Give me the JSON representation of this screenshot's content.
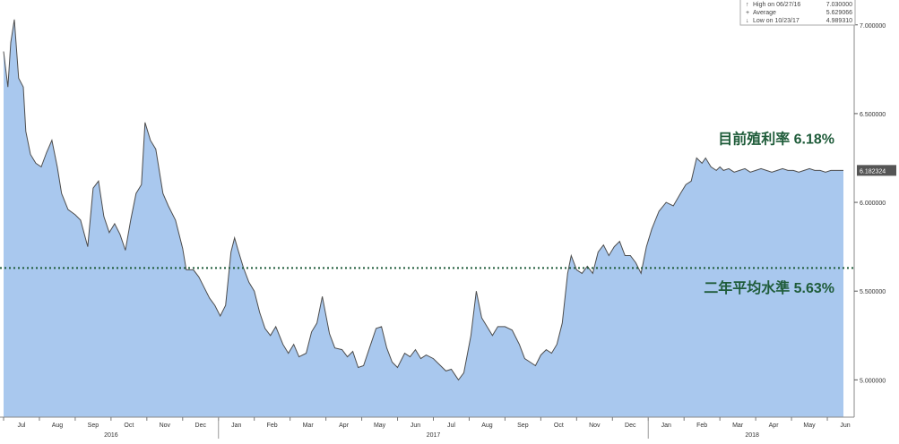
{
  "chart_data": {
    "type": "area",
    "x_axis": {
      "months": [
        {
          "label": "Jul",
          "t": 0.5
        },
        {
          "label": "Aug",
          "t": 1.5
        },
        {
          "label": "Sep",
          "t": 2.5
        },
        {
          "label": "Oct",
          "t": 3.5
        },
        {
          "label": "Nov",
          "t": 4.5
        },
        {
          "label": "Dec",
          "t": 5.5
        },
        {
          "label": "Jan",
          "t": 6.5
        },
        {
          "label": "Feb",
          "t": 7.5
        },
        {
          "label": "Mar",
          "t": 8.5
        },
        {
          "label": "Apr",
          "t": 9.5
        },
        {
          "label": "May",
          "t": 10.5
        },
        {
          "label": "Jun",
          "t": 11.5
        },
        {
          "label": "Jul",
          "t": 12.5
        },
        {
          "label": "Aug",
          "t": 13.5
        },
        {
          "label": "Sep",
          "t": 14.5
        },
        {
          "label": "Oct",
          "t": 15.5
        },
        {
          "label": "Nov",
          "t": 16.5
        },
        {
          "label": "Dec",
          "t": 17.5
        },
        {
          "label": "Jan",
          "t": 18.5
        },
        {
          "label": "Feb",
          "t": 19.5
        },
        {
          "label": "Mar",
          "t": 20.5
        },
        {
          "label": "Apr",
          "t": 21.5
        },
        {
          "label": "May",
          "t": 22.5
        },
        {
          "label": "Jun",
          "t": 23.5
        }
      ],
      "years": [
        {
          "label": "2016",
          "t": 3.0
        },
        {
          "label": "2017",
          "t": 12.0
        },
        {
          "label": "2018",
          "t": 20.9
        }
      ],
      "year_separators": [
        6.0,
        18.0
      ],
      "range": [
        -0.1,
        23.75
      ]
    },
    "y_axis": {
      "ticks": [
        "7.000000",
        "6.500000",
        "6.000000",
        "5.500000",
        "5.000000"
      ],
      "tick_values": [
        7.0,
        6.5,
        6.0,
        5.5,
        5.0
      ],
      "range": [
        4.79,
        7.14
      ]
    },
    "series": [
      {
        "points": [
          [
            0.0,
            6.85
          ],
          [
            0.12,
            6.65
          ],
          [
            0.2,
            6.9
          ],
          [
            0.3,
            7.03
          ],
          [
            0.42,
            6.7
          ],
          [
            0.55,
            6.65
          ],
          [
            0.62,
            6.4
          ],
          [
            0.75,
            6.27
          ],
          [
            0.9,
            6.22
          ],
          [
            1.05,
            6.2
          ],
          [
            1.2,
            6.28
          ],
          [
            1.35,
            6.35
          ],
          [
            1.5,
            6.2
          ],
          [
            1.62,
            6.05
          ],
          [
            1.8,
            5.96
          ],
          [
            2.0,
            5.93
          ],
          [
            2.15,
            5.9
          ],
          [
            2.35,
            5.75
          ],
          [
            2.5,
            6.08
          ],
          [
            2.65,
            6.12
          ],
          [
            2.8,
            5.92
          ],
          [
            2.95,
            5.83
          ],
          [
            3.1,
            5.88
          ],
          [
            3.25,
            5.82
          ],
          [
            3.4,
            5.73
          ],
          [
            3.55,
            5.9
          ],
          [
            3.7,
            6.05
          ],
          [
            3.85,
            6.1
          ],
          [
            3.95,
            6.45
          ],
          [
            4.1,
            6.35
          ],
          [
            4.25,
            6.3
          ],
          [
            4.45,
            6.05
          ],
          [
            4.6,
            5.98
          ],
          [
            4.8,
            5.9
          ],
          [
            5.0,
            5.74
          ],
          [
            5.1,
            5.62
          ],
          [
            5.3,
            5.62
          ],
          [
            5.45,
            5.58
          ],
          [
            5.6,
            5.52
          ],
          [
            5.75,
            5.46
          ],
          [
            5.9,
            5.42
          ],
          [
            6.05,
            5.36
          ],
          [
            6.2,
            5.42
          ],
          [
            6.35,
            5.72
          ],
          [
            6.45,
            5.8
          ],
          [
            6.55,
            5.73
          ],
          [
            6.7,
            5.63
          ],
          [
            6.85,
            5.55
          ],
          [
            7.0,
            5.5
          ],
          [
            7.15,
            5.38
          ],
          [
            7.3,
            5.29
          ],
          [
            7.45,
            5.25
          ],
          [
            7.6,
            5.3
          ],
          [
            7.8,
            5.2
          ],
          [
            7.95,
            5.15
          ],
          [
            8.1,
            5.2
          ],
          [
            8.25,
            5.13
          ],
          [
            8.45,
            5.15
          ],
          [
            8.6,
            5.27
          ],
          [
            8.75,
            5.32
          ],
          [
            8.9,
            5.47
          ],
          [
            9.1,
            5.26
          ],
          [
            9.25,
            5.18
          ],
          [
            9.45,
            5.17
          ],
          [
            9.6,
            5.13
          ],
          [
            9.75,
            5.16
          ],
          [
            9.9,
            5.07
          ],
          [
            10.05,
            5.08
          ],
          [
            10.25,
            5.2
          ],
          [
            10.4,
            5.29
          ],
          [
            10.55,
            5.3
          ],
          [
            10.7,
            5.18
          ],
          [
            10.85,
            5.1
          ],
          [
            11.0,
            5.07
          ],
          [
            11.2,
            5.15
          ],
          [
            11.35,
            5.13
          ],
          [
            11.5,
            5.17
          ],
          [
            11.65,
            5.12
          ],
          [
            11.8,
            5.14
          ],
          [
            12.0,
            5.12
          ],
          [
            12.2,
            5.08
          ],
          [
            12.35,
            5.05
          ],
          [
            12.5,
            5.06
          ],
          [
            12.7,
            5.0
          ],
          [
            12.85,
            5.04
          ],
          [
            13.05,
            5.25
          ],
          [
            13.2,
            5.5
          ],
          [
            13.35,
            5.35
          ],
          [
            13.5,
            5.3
          ],
          [
            13.65,
            5.25
          ],
          [
            13.8,
            5.3
          ],
          [
            14.0,
            5.3
          ],
          [
            14.2,
            5.28
          ],
          [
            14.4,
            5.2
          ],
          [
            14.55,
            5.12
          ],
          [
            14.7,
            5.1
          ],
          [
            14.85,
            5.08
          ],
          [
            15.0,
            5.14
          ],
          [
            15.15,
            5.17
          ],
          [
            15.3,
            5.15
          ],
          [
            15.45,
            5.2
          ],
          [
            15.6,
            5.32
          ],
          [
            15.75,
            5.6
          ],
          [
            15.85,
            5.7
          ],
          [
            16.0,
            5.62
          ],
          [
            16.15,
            5.6
          ],
          [
            16.3,
            5.64
          ],
          [
            16.45,
            5.6
          ],
          [
            16.6,
            5.72
          ],
          [
            16.75,
            5.76
          ],
          [
            16.9,
            5.7
          ],
          [
            17.05,
            5.75
          ],
          [
            17.2,
            5.78
          ],
          [
            17.35,
            5.7
          ],
          [
            17.5,
            5.7
          ],
          [
            17.65,
            5.66
          ],
          [
            17.8,
            5.6
          ],
          [
            17.95,
            5.75
          ],
          [
            18.1,
            5.85
          ],
          [
            18.3,
            5.95
          ],
          [
            18.5,
            6.0
          ],
          [
            18.7,
            5.98
          ],
          [
            18.9,
            6.05
          ],
          [
            19.05,
            6.1
          ],
          [
            19.2,
            6.12
          ],
          [
            19.35,
            6.25
          ],
          [
            19.5,
            6.22
          ],
          [
            19.6,
            6.25
          ],
          [
            19.75,
            6.2
          ],
          [
            19.9,
            6.18
          ],
          [
            20.0,
            6.2
          ],
          [
            20.1,
            6.18
          ],
          [
            20.25,
            6.19
          ],
          [
            20.4,
            6.17
          ],
          [
            20.55,
            6.18
          ],
          [
            20.7,
            6.19
          ],
          [
            20.85,
            6.17
          ],
          [
            21.0,
            6.18
          ],
          [
            21.15,
            6.19
          ],
          [
            21.3,
            6.18
          ],
          [
            21.45,
            6.17
          ],
          [
            21.6,
            6.18
          ],
          [
            21.75,
            6.19
          ],
          [
            21.9,
            6.18
          ],
          [
            22.05,
            6.18
          ],
          [
            22.2,
            6.17
          ],
          [
            22.35,
            6.18
          ],
          [
            22.5,
            6.19
          ],
          [
            22.65,
            6.18
          ],
          [
            22.8,
            6.18
          ],
          [
            22.95,
            6.17
          ],
          [
            23.1,
            6.18
          ],
          [
            23.3,
            6.18
          ],
          [
            23.45,
            6.18
          ]
        ],
        "last_value_label": "6.182324"
      }
    ],
    "average": 5.63,
    "legend": {
      "lines": [
        {
          "symbol": "↑",
          "text": "High on 06/27/16",
          "value": "7.030000"
        },
        {
          "symbol": "+",
          "text": "Average",
          "value": "5.629066"
        },
        {
          "symbol": "↓",
          "text": "Low on 10/23/17",
          "value": "4.989310"
        }
      ]
    },
    "annotations": [
      {
        "text": "目前殖利率 6.18%",
        "t": 23.2,
        "value": 6.33
      },
      {
        "text": "二年平均水準 5.63%",
        "t": 23.2,
        "value": 5.49
      }
    ],
    "colors": {
      "area_fill": "#a9c8ee",
      "line": "#4d4d4d",
      "average_line": "#1f5c3a",
      "annotation_text": "#1f5c3a",
      "last_label_bg": "#555555"
    },
    "grid": false,
    "legend_position": "top-right"
  }
}
